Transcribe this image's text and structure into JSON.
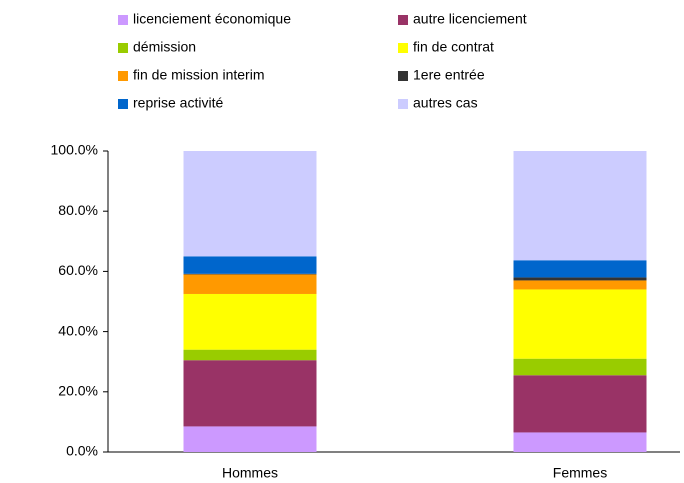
{
  "chart_data": {
    "type": "stacked_bar",
    "categories": [
      "Hommes",
      "Femmes"
    ],
    "series": [
      {
        "name": "licenciement économique",
        "color": "#cc99ff",
        "values": [
          8.5,
          6.5
        ]
      },
      {
        "name": "autre licenciement",
        "color": "#993366",
        "values": [
          22,
          19
        ]
      },
      {
        "name": "démission",
        "color": "#99cc00",
        "values": [
          3.5,
          5.5
        ]
      },
      {
        "name": "fin de contrat",
        "color": "#ffff00",
        "values": [
          18.5,
          23
        ]
      },
      {
        "name": "fin de mission interim",
        "color": "#ff9900",
        "values": [
          6.5,
          3
        ]
      },
      {
        "name": "1ere entrée",
        "color": "#333333",
        "values": [
          0.2,
          1
        ]
      },
      {
        "name": "reprise activité",
        "color": "#0066cc",
        "values": [
          5.8,
          5.7
        ]
      },
      {
        "name": "autres cas",
        "color": "#ccccff",
        "values": [
          35,
          36.3
        ]
      }
    ],
    "ylim": [
      0,
      100
    ],
    "yticks": [
      {
        "value": 0,
        "label": "0.0%"
      },
      {
        "value": 20,
        "label": "20.0%"
      },
      {
        "value": 40,
        "label": "40.0%"
      },
      {
        "value": 60,
        "label": "60.0%"
      },
      {
        "value": 80,
        "label": "80.0%"
      },
      {
        "value": 100,
        "label": "100.0%"
      }
    ],
    "legend": "top"
  }
}
